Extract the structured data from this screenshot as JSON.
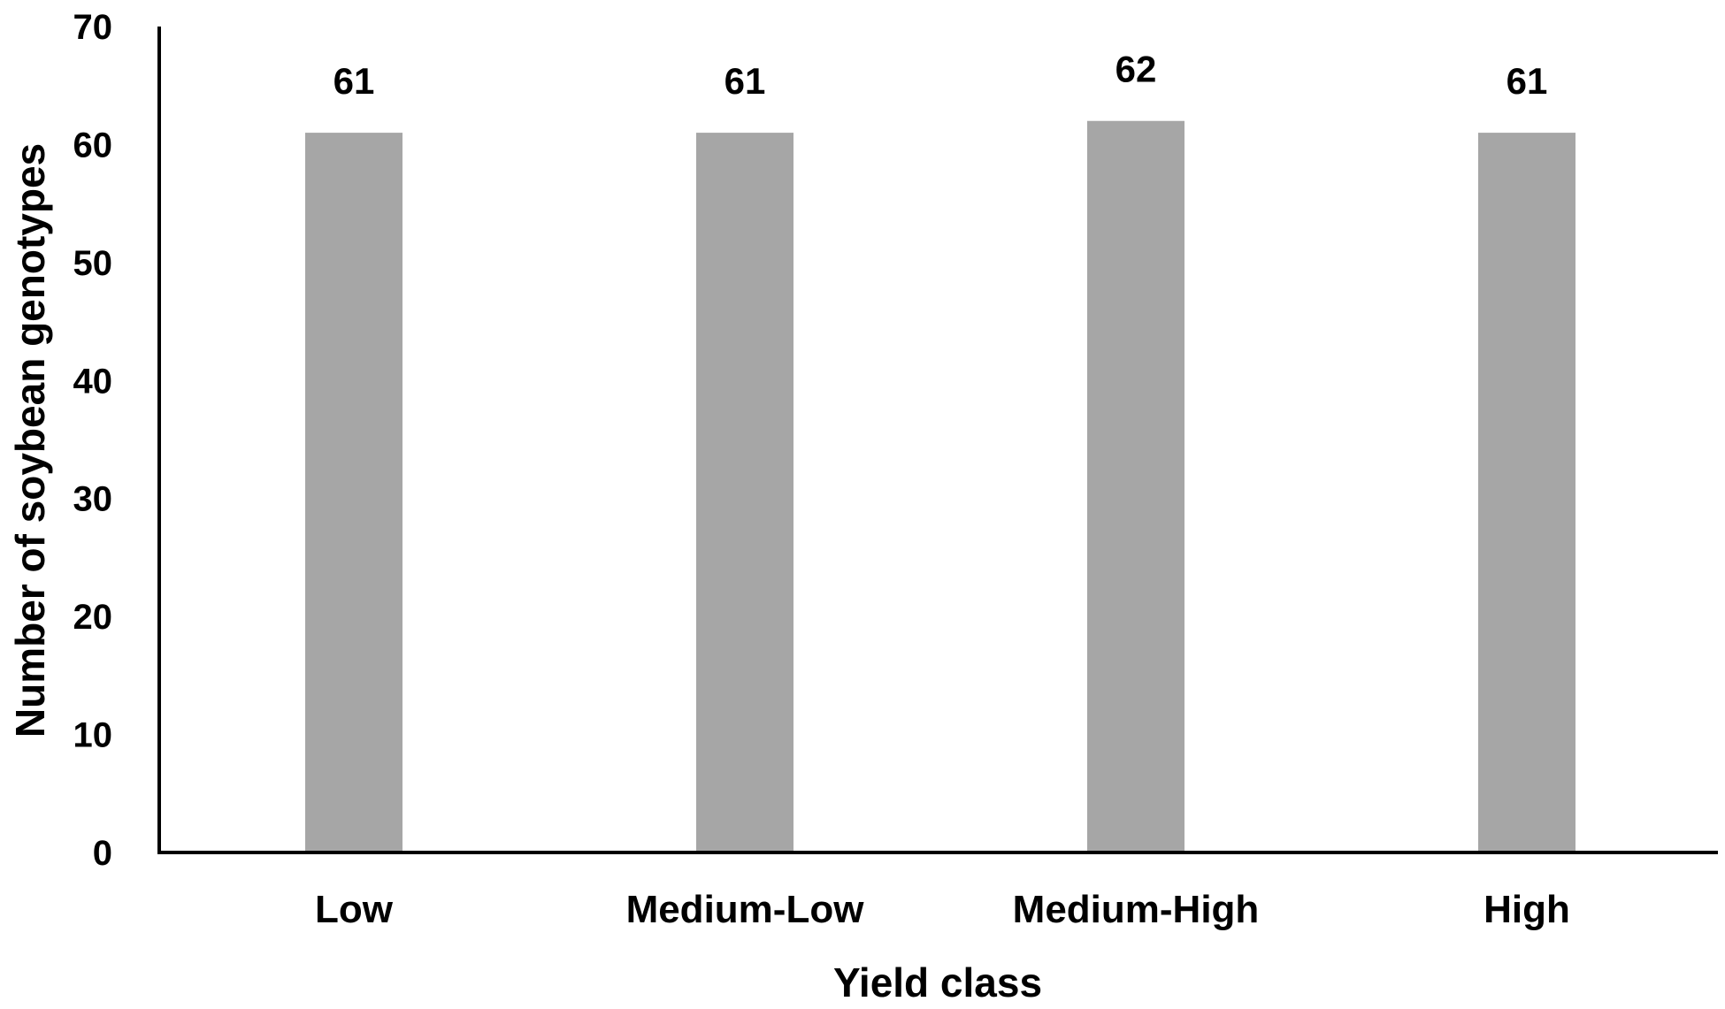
{
  "chart_data": {
    "type": "bar",
    "title": "",
    "xlabel": "Yield class",
    "ylabel": "Number of soybean genotypes",
    "categories": [
      "Low",
      "Medium-Low",
      "Medium-High",
      "High"
    ],
    "values": [
      61,
      61,
      62,
      61
    ],
    "data_labels": [
      "61",
      "61",
      "62",
      "61"
    ],
    "ylim": [
      0,
      70
    ],
    "yticks": [
      "0",
      "10",
      "20",
      "30",
      "40",
      "50",
      "60",
      "70"
    ],
    "grid": false,
    "legend": "none",
    "bar_color": "#a6a6a6"
  }
}
